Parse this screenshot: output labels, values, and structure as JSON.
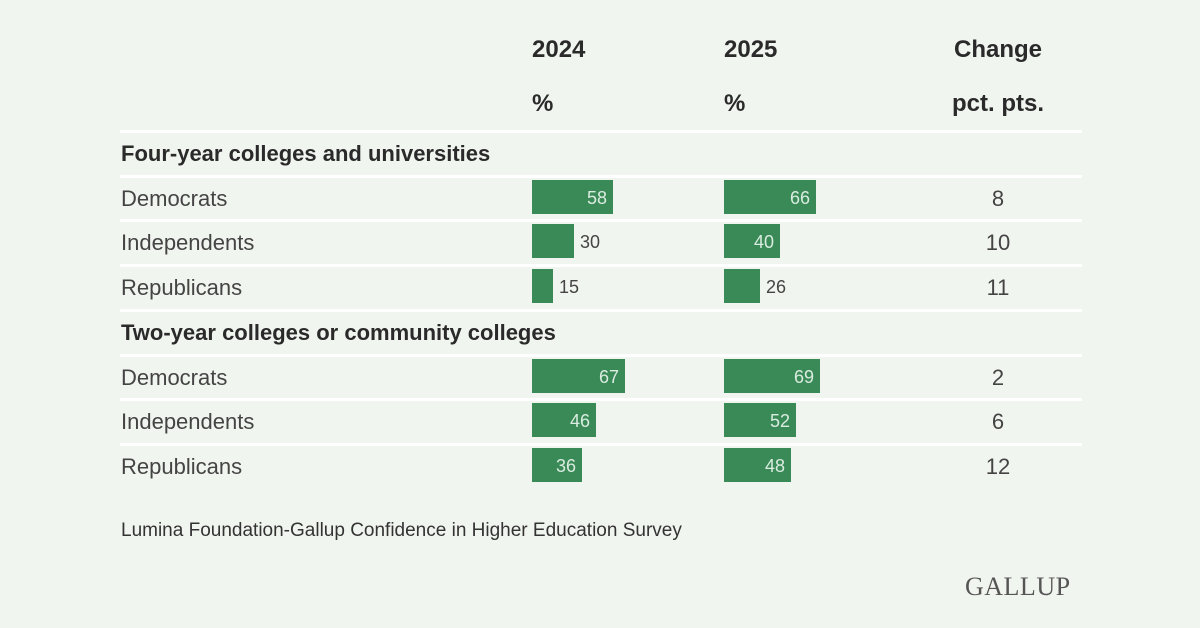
{
  "colors": {
    "bar": "#3a8a58",
    "background": "#f1f5ef"
  },
  "header": {
    "col_2024": "2024",
    "col_2024_unit": "%",
    "col_2025": "2025",
    "col_2025_unit": "%",
    "col_change": "Change",
    "col_change_unit": "pct. pts."
  },
  "source": "Lumina Foundation-Gallup Confidence in Higher Education Survey",
  "brand": "GALLUP",
  "chart_data": {
    "type": "bar",
    "title": "",
    "x_range": [
      0,
      100
    ],
    "series_names": [
      "2024",
      "2025"
    ],
    "groups": [
      {
        "title": "Four-year colleges and universities",
        "rows": [
          {
            "label": "Democrats",
            "v2024": 58,
            "v2025": 66,
            "change": 8
          },
          {
            "label": "Independents",
            "v2024": 30,
            "v2025": 40,
            "change": 10
          },
          {
            "label": "Republicans",
            "v2024": 15,
            "v2025": 26,
            "change": 11
          }
        ]
      },
      {
        "title": "Two-year colleges or community colleges",
        "rows": [
          {
            "label": "Democrats",
            "v2024": 67,
            "v2025": 69,
            "change": 2
          },
          {
            "label": "Independents",
            "v2024": 46,
            "v2025": 52,
            "change": 6
          },
          {
            "label": "Republicans",
            "v2024": 36,
            "v2025": 48,
            "change": 12
          }
        ]
      }
    ]
  }
}
